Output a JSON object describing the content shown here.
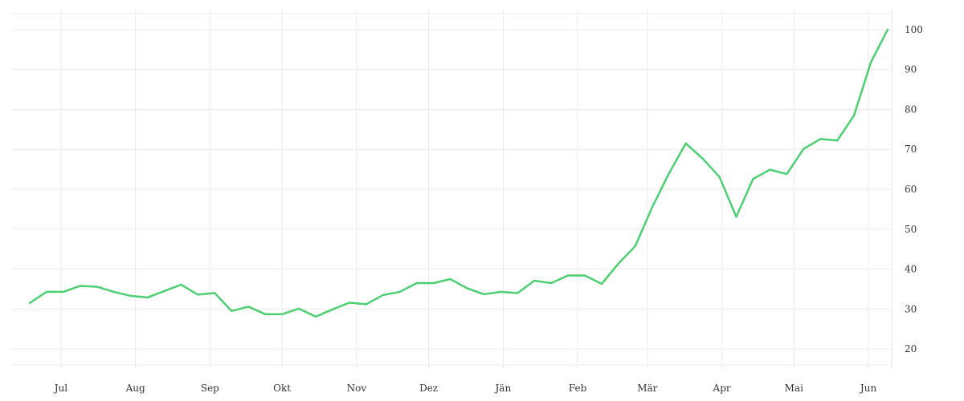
{
  "chart_data": {
    "type": "line",
    "title": "",
    "xlabel": "",
    "ylabel": "",
    "grid": true,
    "legend": "none",
    "y_axis_side": "right",
    "ylim": [
      15,
      105
    ],
    "y_ticks": [
      20,
      30,
      40,
      50,
      60,
      70,
      80,
      90,
      100
    ],
    "x_start": "2023-06-18",
    "x_step_days": 7,
    "x_ticks": [
      {
        "label": "Jul",
        "date": "2023-07-01"
      },
      {
        "label": "Aug",
        "date": "2023-08-01"
      },
      {
        "label": "Sep",
        "date": "2023-09-01"
      },
      {
        "label": "Okt",
        "date": "2023-10-01"
      },
      {
        "label": "Nov",
        "date": "2023-11-01"
      },
      {
        "label": "Dez",
        "date": "2023-12-01"
      },
      {
        "label": "Jän",
        "date": "2024-01-01"
      },
      {
        "label": "Feb",
        "date": "2024-02-01"
      },
      {
        "label": "Mär",
        "date": "2024-03-01"
      },
      {
        "label": "Apr",
        "date": "2024-04-01"
      },
      {
        "label": "Mai",
        "date": "2024-05-01"
      },
      {
        "label": "Jun",
        "date": "2024-06-01"
      }
    ],
    "series": [
      {
        "color": "#4cd072",
        "values": [
          31.5,
          34.3,
          34.3,
          35.8,
          35.6,
          34.3,
          33.3,
          32.9,
          34.5,
          36.1,
          33.6,
          34.0,
          29.5,
          30.6,
          28.7,
          28.7,
          30.1,
          28.1,
          29.9,
          31.6,
          31.2,
          33.5,
          34.3,
          36.5,
          36.5,
          37.5,
          35.2,
          33.7,
          34.3,
          34.0,
          37.1,
          36.5,
          38.4,
          38.4,
          36.3,
          41.4,
          45.8,
          55.5,
          64.0,
          71.5,
          67.7,
          63.1,
          53.1,
          62.6,
          64.9,
          63.8,
          70.1,
          72.6,
          72.2,
          78.5,
          91.8,
          100.0
        ]
      }
    ]
  }
}
